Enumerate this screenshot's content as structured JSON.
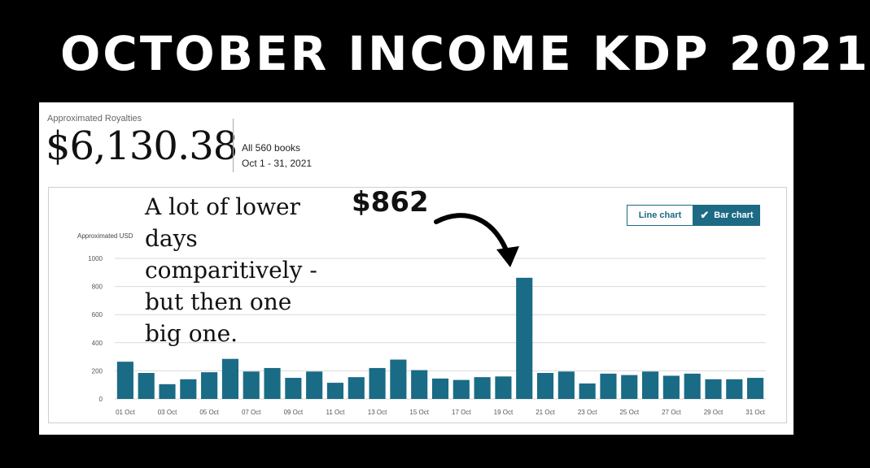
{
  "headline": "OCTOBER INCOME KDP 2021",
  "summary": {
    "label": "Approximated Royalties",
    "amount": "$6,130.38",
    "books": "All 560 books",
    "date_range": "Oct 1 - 31, 2021"
  },
  "toggle": {
    "line_label": "Line chart",
    "bar_label": "Bar chart",
    "active": "bar",
    "check_icon": "checkmark-icon"
  },
  "annotation": {
    "text": "A lot of lower days comparitively - but then one big one.",
    "big_value": "$862",
    "arrow_icon": "curved-arrow-icon"
  },
  "colors": {
    "bar": "#1a6b85",
    "accent": "#1d6a85",
    "background": "#000000"
  },
  "chart_data": {
    "type": "bar",
    "ylabel": "Approximated USD",
    "ylim": [
      0,
      1000
    ],
    "yticks": [
      0,
      200,
      400,
      600,
      800,
      1000
    ],
    "grid": true,
    "categories": [
      "01 Oct",
      "02 Oct",
      "03 Oct",
      "04 Oct",
      "05 Oct",
      "06 Oct",
      "07 Oct",
      "08 Oct",
      "09 Oct",
      "10 Oct",
      "11 Oct",
      "12 Oct",
      "13 Oct",
      "14 Oct",
      "15 Oct",
      "16 Oct",
      "17 Oct",
      "18 Oct",
      "19 Oct",
      "20 Oct",
      "21 Oct",
      "22 Oct",
      "23 Oct",
      "24 Oct",
      "25 Oct",
      "26 Oct",
      "27 Oct",
      "28 Oct",
      "29 Oct",
      "30 Oct",
      "31 Oct"
    ],
    "tick_labels": [
      "01 Oct",
      "03 Oct",
      "05 Oct",
      "07 Oct",
      "09 Oct",
      "11 Oct",
      "13 Oct",
      "15 Oct",
      "17 Oct",
      "19 Oct",
      "21 Oct",
      "23 Oct",
      "25 Oct",
      "27 Oct",
      "29 Oct",
      "31 Oct"
    ],
    "values": [
      265,
      185,
      105,
      140,
      190,
      285,
      195,
      220,
      150,
      195,
      115,
      155,
      220,
      280,
      205,
      145,
      135,
      155,
      160,
      862,
      185,
      195,
      110,
      180,
      170,
      195,
      165,
      180,
      140,
      140,
      150
    ]
  }
}
